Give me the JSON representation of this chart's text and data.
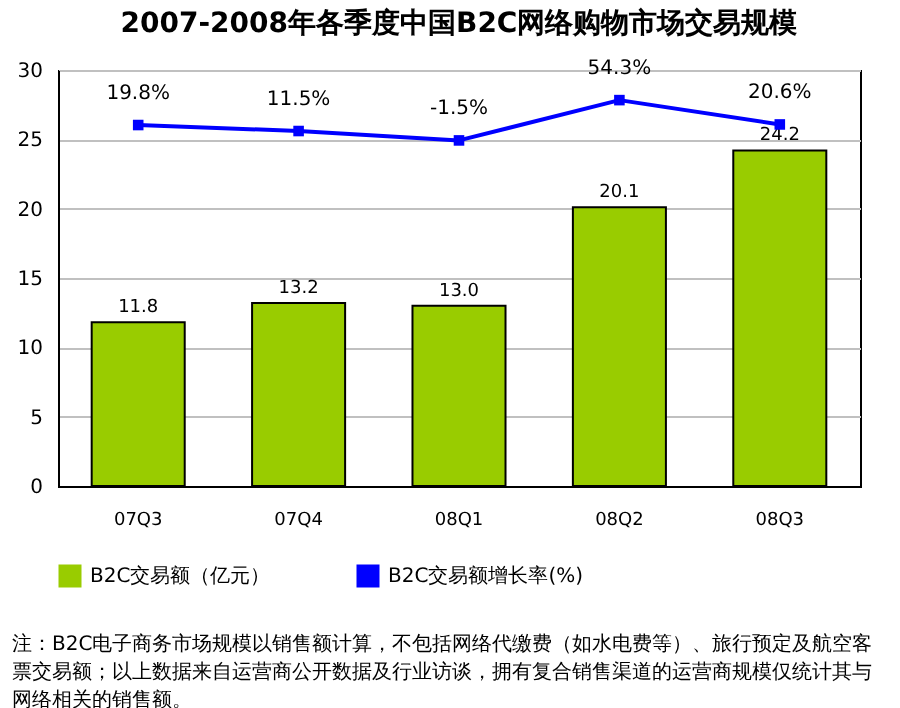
{
  "chart_data": {
    "type": "bar",
    "title": "2007-2008年各季度中国B2C网络购物市场交易规模",
    "categories": [
      "07Q3",
      "07Q4",
      "08Q1",
      "08Q2",
      "08Q3"
    ],
    "series": [
      {
        "name": "B2C交易额（亿元）",
        "color": "#99cc00",
        "values": [
          11.8,
          13.2,
          13.0,
          20.1,
          24.2
        ],
        "value_labels": [
          "11.8",
          "13.2",
          "13.0",
          "20.1",
          "24.2"
        ]
      },
      {
        "name": "B2C交易额增长率(%)",
        "type": "line",
        "axis": "y2",
        "color": "#0000ff",
        "values": [
          19.8,
          11.5,
          -1.5,
          54.3,
          20.6
        ],
        "value_labels": [
          "19.8%",
          "11.5%",
          "-1.5%",
          "54.3%",
          "20.6%"
        ]
      }
    ],
    "ylim": [
      0,
      30
    ],
    "yticks": [
      0,
      5,
      10,
      15,
      20,
      25,
      30
    ],
    "y2lim": [
      -480,
      96
    ],
    "grid": "y",
    "legend": "bottom",
    "marker": "square",
    "annotations": [
      "注：B2C电子商务市场规模以销售额计算，不包括网络代缴费（如水电费等）、旅行预定及航空客票交易额；以上数据来自运营商公开数据及行业访谈，拥有复合销售渠道的运营商规模仅统计其与网络相关的销售额。"
    ]
  }
}
